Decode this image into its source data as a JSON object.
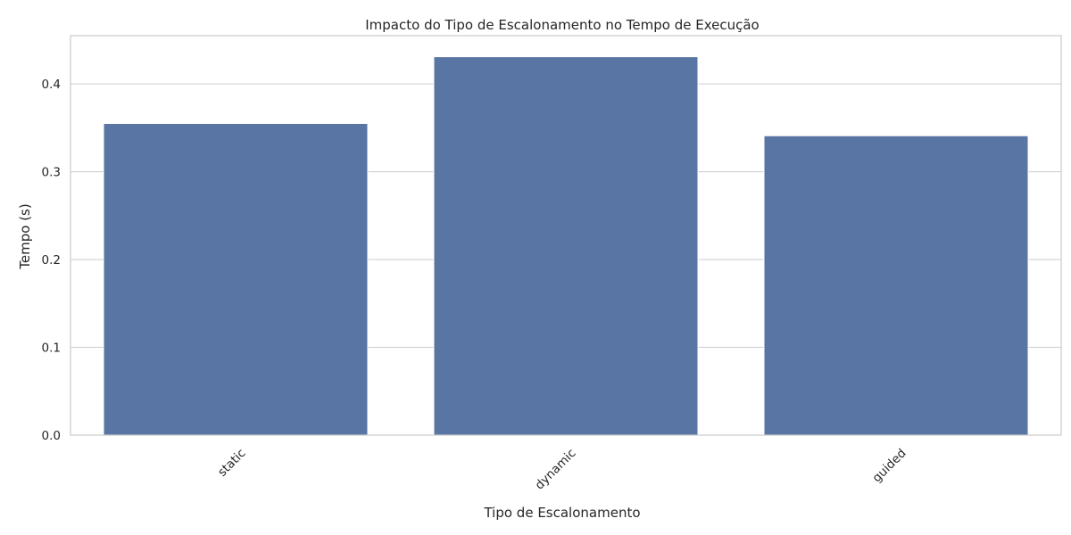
{
  "chart_data": {
    "type": "bar",
    "title": "Impacto do Tipo de Escalonamento no Tempo de Execução",
    "xlabel": "Tipo de Escalonamento",
    "ylabel": "Tempo (s)",
    "categories": [
      "static",
      "dynamic",
      "guided"
    ],
    "values": [
      0.355,
      0.431,
      0.341
    ],
    "ylim": [
      0,
      0.455
    ],
    "yticks": [
      0.0,
      0.1,
      0.2,
      0.3,
      0.4
    ],
    "ytick_labels": [
      "0.0",
      "0.1",
      "0.2",
      "0.3",
      "0.4"
    ],
    "xtick_rotation": 45,
    "grid": "horizontal",
    "legend": "none",
    "colors": {
      "bar": "#5975a4",
      "bar_edge": "#ffffff",
      "grid": "#cccccc",
      "spine": "#cccccc",
      "text": "#262626",
      "background": "#ffffff"
    }
  }
}
